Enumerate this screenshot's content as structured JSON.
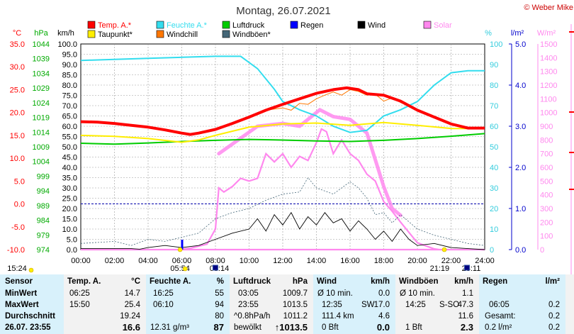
{
  "chart_data": {
    "type": "line",
    "title": "Montag, 26.07.2021",
    "credit": "© Weber Mike",
    "legend": [
      {
        "name": "Temp. A.*",
        "color": "#ff0000"
      },
      {
        "name": "Feuchte A.*",
        "color": "#33ddee"
      },
      {
        "name": "Luftdruck",
        "color": "#00cc00"
      },
      {
        "name": "Regen",
        "color": "#0000ff"
      },
      {
        "name": "Wind",
        "color": "#000000"
      },
      {
        "name": "Solar",
        "color": "#ff88ee"
      },
      {
        "name": "Taupunkt*",
        "color": "#ffee00"
      },
      {
        "name": "Windchill",
        "color": "#ff7700"
      },
      {
        "name": "Windböen*",
        "color": "#446677"
      }
    ],
    "axes": {
      "temp": {
        "unit": "°C",
        "color": "#ff0000",
        "ticks": [
          "35.0",
          "30.0",
          "25.0",
          "20.0",
          "15.0",
          "10.0",
          "5.0",
          "0.0",
          "-5.0",
          "-10.0"
        ]
      },
      "pressure": {
        "unit": "hPa",
        "color": "#00aa00",
        "ticks": [
          "1044",
          "1039",
          "1034",
          "1029",
          "1024",
          "1019",
          "1014",
          "1009",
          "1004",
          "999",
          "994",
          "989",
          "984",
          "979",
          "974"
        ]
      },
      "wind": {
        "unit": "km/h",
        "color": "#000000",
        "ticks": [
          "100.0",
          "95.0",
          "90.0",
          "85.0",
          "80.0",
          "75.0",
          "70.0",
          "65.0",
          "60.0",
          "55.0",
          "50.0",
          "45.0",
          "40.0",
          "35.0",
          "30.0",
          "25.0",
          "20.0",
          "15.0",
          "10.0",
          "5.0",
          "0.0"
        ]
      },
      "humidity": {
        "unit": "%",
        "color": "#33ccdd",
        "ticks": [
          "100",
          "90",
          "80",
          "70",
          "60",
          "50",
          "40",
          "30",
          "20",
          "10",
          "0"
        ]
      },
      "rain": {
        "unit": "l/m²",
        "color": "#0000cc",
        "ticks": [
          "5.0",
          "4.0",
          "3.0",
          "2.0",
          "1.0",
          "0.0"
        ]
      },
      "solar": {
        "unit": "W/m²",
        "color": "#ff88ee",
        "ticks": [
          "1500",
          "1400",
          "1300",
          "1200",
          "1100",
          "1000",
          "900",
          "800",
          "700",
          "600",
          "500",
          "400",
          "300",
          "200",
          "100",
          "0"
        ]
      },
      "time": {
        "ticks": [
          "00:00",
          "02:00",
          "04:00",
          "06:00",
          "08:00",
          "10:00",
          "12:00",
          "14:00",
          "16:00",
          "18:00",
          "20:00",
          "22:00",
          "24:00"
        ]
      }
    },
    "sun": {
      "moonset": "15:24",
      "sunrise": "05:54",
      "moonrise_marker": "08:14",
      "sunset": "21:19",
      "moon_marker": "23:11"
    },
    "series": {
      "temp": [
        [
          0,
          18
        ],
        [
          1,
          17.9
        ],
        [
          2,
          17.6
        ],
        [
          3,
          17.2
        ],
        [
          4,
          16.8
        ],
        [
          5,
          16.2
        ],
        [
          6,
          15.5
        ],
        [
          6.5,
          15.2
        ],
        [
          7,
          15.5
        ],
        [
          8,
          16.3
        ],
        [
          9,
          17.6
        ],
        [
          10,
          19
        ],
        [
          11,
          20.5
        ],
        [
          12,
          21.8
        ],
        [
          13,
          23
        ],
        [
          14,
          24.2
        ],
        [
          15,
          25
        ],
        [
          15.8,
          25.4
        ],
        [
          16.5,
          25
        ],
        [
          17,
          24.1
        ],
        [
          18,
          23.8
        ],
        [
          19,
          22.5
        ],
        [
          20,
          20.5
        ],
        [
          21,
          19
        ],
        [
          22,
          17.5
        ],
        [
          23,
          16.6
        ],
        [
          24,
          16.6
        ]
      ],
      "dewpoint": [
        [
          0,
          15
        ],
        [
          2,
          14.8
        ],
        [
          4,
          14.3
        ],
        [
          6,
          13.5
        ],
        [
          7,
          14
        ],
        [
          8,
          15
        ],
        [
          10,
          16.8
        ],
        [
          12,
          17.5
        ],
        [
          14,
          17.7
        ],
        [
          16,
          17.2
        ],
        [
          18,
          17.8
        ],
        [
          20,
          17.2
        ],
        [
          22,
          16.5
        ],
        [
          24,
          16.5
        ]
      ],
      "windchill": [
        [
          10,
          19
        ],
        [
          11,
          20.5
        ],
        [
          12,
          21
        ],
        [
          12.5,
          20.5
        ],
        [
          13,
          22
        ],
        [
          13.5,
          21.8
        ],
        [
          14,
          23
        ],
        [
          14.5,
          23.8
        ],
        [
          15,
          24.5
        ],
        [
          15.5,
          23.8
        ],
        [
          16,
          25
        ],
        [
          16.5,
          24.6
        ],
        [
          17,
          23.8
        ],
        [
          17.5,
          24
        ],
        [
          18,
          22.5
        ],
        [
          18.5,
          23.2
        ],
        [
          19,
          22.2
        ],
        [
          20,
          20.5
        ]
      ],
      "humidity": [
        [
          0,
          92
        ],
        [
          2,
          92.5
        ],
        [
          4,
          93
        ],
        [
          6,
          93.5
        ],
        [
          8,
          94
        ],
        [
          9.5,
          94
        ],
        [
          10.5,
          88
        ],
        [
          11.5,
          78
        ],
        [
          12,
          72
        ],
        [
          13,
          68
        ],
        [
          14,
          65
        ],
        [
          15,
          60
        ],
        [
          16,
          57
        ],
        [
          17,
          58
        ],
        [
          18,
          65
        ],
        [
          19,
          68
        ],
        [
          20,
          72
        ],
        [
          21,
          80
        ],
        [
          22,
          86
        ],
        [
          23,
          87
        ],
        [
          24,
          87
        ]
      ],
      "pressure": [
        [
          0,
          1010.2
        ],
        [
          2,
          1009.9
        ],
        [
          4,
          1010.3
        ],
        [
          6,
          1010.8
        ],
        [
          8,
          1011.2
        ],
        [
          10,
          1011.5
        ],
        [
          12,
          1011.3
        ],
        [
          14,
          1011.0
        ],
        [
          16,
          1010.8
        ],
        [
          18,
          1011.2
        ],
        [
          20,
          1011.8
        ],
        [
          22,
          1012.6
        ],
        [
          24,
          1013.5
        ]
      ],
      "wind": [
        [
          0,
          0.5
        ],
        [
          3,
          0.5
        ],
        [
          3.5,
          0.2
        ],
        [
          4,
          1
        ],
        [
          5,
          2
        ],
        [
          6,
          1
        ],
        [
          7,
          2
        ],
        [
          8,
          5
        ],
        [
          9,
          8
        ],
        [
          10,
          10
        ],
        [
          10.5,
          15
        ],
        [
          11,
          9
        ],
        [
          11.5,
          17
        ],
        [
          12,
          12
        ],
        [
          12.5,
          18
        ],
        [
          13,
          10
        ],
        [
          13.5,
          16
        ],
        [
          14,
          12
        ],
        [
          14.5,
          18
        ],
        [
          15,
          13
        ],
        [
          15.5,
          15
        ],
        [
          16,
          9
        ],
        [
          16.5,
          14
        ],
        [
          17,
          10
        ],
        [
          17.5,
          5
        ],
        [
          18,
          9
        ],
        [
          18.5,
          4
        ],
        [
          19,
          10
        ],
        [
          19.5,
          5
        ],
        [
          20,
          2
        ],
        [
          21,
          3
        ],
        [
          22,
          1
        ],
        [
          23,
          0.5
        ],
        [
          24,
          0
        ]
      ],
      "gusts": [
        [
          0,
          3
        ],
        [
          2,
          4
        ],
        [
          3,
          2
        ],
        [
          4,
          5
        ],
        [
          5,
          4
        ],
        [
          6,
          6
        ],
        [
          7,
          8
        ],
        [
          8,
          15
        ],
        [
          9,
          18
        ],
        [
          10,
          20
        ],
        [
          11,
          24
        ],
        [
          12,
          27
        ],
        [
          13,
          28
        ],
        [
          13.5,
          35
        ],
        [
          14,
          30
        ],
        [
          15,
          27
        ],
        [
          16,
          33
        ],
        [
          16.5,
          30
        ],
        [
          17,
          25
        ],
        [
          17.5,
          17
        ],
        [
          18,
          18
        ],
        [
          18.5,
          13
        ],
        [
          19,
          17
        ],
        [
          20,
          10
        ],
        [
          21,
          7
        ],
        [
          22,
          5
        ],
        [
          23,
          3
        ],
        [
          24,
          2
        ]
      ],
      "solar": [
        [
          0,
          0
        ],
        [
          5.8,
          0
        ],
        [
          6.5,
          10
        ],
        [
          7.5,
          40
        ],
        [
          8,
          150
        ],
        [
          8.2,
          450
        ],
        [
          8.5,
          420
        ],
        [
          9,
          460
        ],
        [
          9.5,
          520
        ],
        [
          10,
          500
        ],
        [
          10.5,
          520
        ],
        [
          11,
          700
        ],
        [
          11.5,
          640
        ],
        [
          12,
          700
        ],
        [
          12.5,
          600
        ],
        [
          13,
          680
        ],
        [
          13.5,
          650
        ],
        [
          14,
          780
        ],
        [
          14.3,
          880
        ],
        [
          14.6,
          860
        ],
        [
          15,
          700
        ],
        [
          15.5,
          800
        ],
        [
          16,
          700
        ],
        [
          16.5,
          650
        ],
        [
          17,
          550
        ],
        [
          17.5,
          500
        ],
        [
          18,
          350
        ],
        [
          18.5,
          280
        ],
        [
          19,
          200
        ],
        [
          20,
          50
        ],
        [
          21,
          5
        ],
        [
          21.3,
          0
        ],
        [
          24,
          0
        ]
      ],
      "solar_max": [
        [
          8.2,
          700
        ],
        [
          10.5,
          900
        ],
        [
          12,
          920
        ],
        [
          13,
          900
        ],
        [
          14.2,
          1020
        ],
        [
          15,
          970
        ],
        [
          16,
          950
        ],
        [
          17,
          850
        ],
        [
          18,
          460
        ],
        [
          18.5,
          300
        ],
        [
          19,
          250
        ]
      ]
    },
    "table": {
      "headers": {
        "sensor": "Sensor",
        "temp": "Temp. A.",
        "temp_unit": "°C",
        "hum": "Feuchte A.",
        "hum_unit": "%",
        "press": "Luftdruck",
        "press_unit": "hPa",
        "wind": "Wind",
        "wind_unit": "km/h",
        "gust": "Windböen",
        "gust_unit": "km/h",
        "rain": "Regen",
        "rain_unit": "l/m²"
      },
      "row_labels": [
        "MinWert",
        "MaxWert",
        "Durchschnitt",
        "26.07. 23:55"
      ],
      "temp": [
        [
          "06:25",
          "14.7"
        ],
        [
          "15:50",
          "25.4"
        ],
        [
          "",
          "19.24"
        ],
        [
          "",
          "16.6"
        ]
      ],
      "hum": [
        [
          "16:25",
          "55"
        ],
        [
          "06:10",
          "94"
        ],
        [
          "",
          "80"
        ],
        [
          "12.31 g/m³",
          "87"
        ]
      ],
      "press": [
        [
          "03:05",
          "1009.7"
        ],
        [
          "23:55",
          "1013.5"
        ],
        [
          "^0.8hPa/h",
          "1011.2"
        ],
        [
          "bewölkt",
          "↑1013.5"
        ]
      ],
      "wind": [
        [
          "Ø 10 min.",
          "",
          "0.0"
        ],
        [
          "12:35",
          "SW",
          "17.0"
        ],
        [
          "111.4 km",
          "",
          "4.6"
        ],
        [
          "0 Bft",
          "",
          "0.0"
        ]
      ],
      "gust": [
        [
          "Ø 10 min.",
          "",
          "1.1"
        ],
        [
          "14:25",
          "S-SO",
          "47.3"
        ],
        [
          "",
          "",
          "11.6"
        ],
        [
          "1 Bft",
          "",
          "2.3"
        ]
      ],
      "rain": [
        [
          "",
          ""
        ],
        [
          "06:05",
          "0.2"
        ],
        [
          "Gesamt:",
          "0.2"
        ],
        [
          "0.2 l/m²",
          "0.2"
        ]
      ]
    }
  }
}
